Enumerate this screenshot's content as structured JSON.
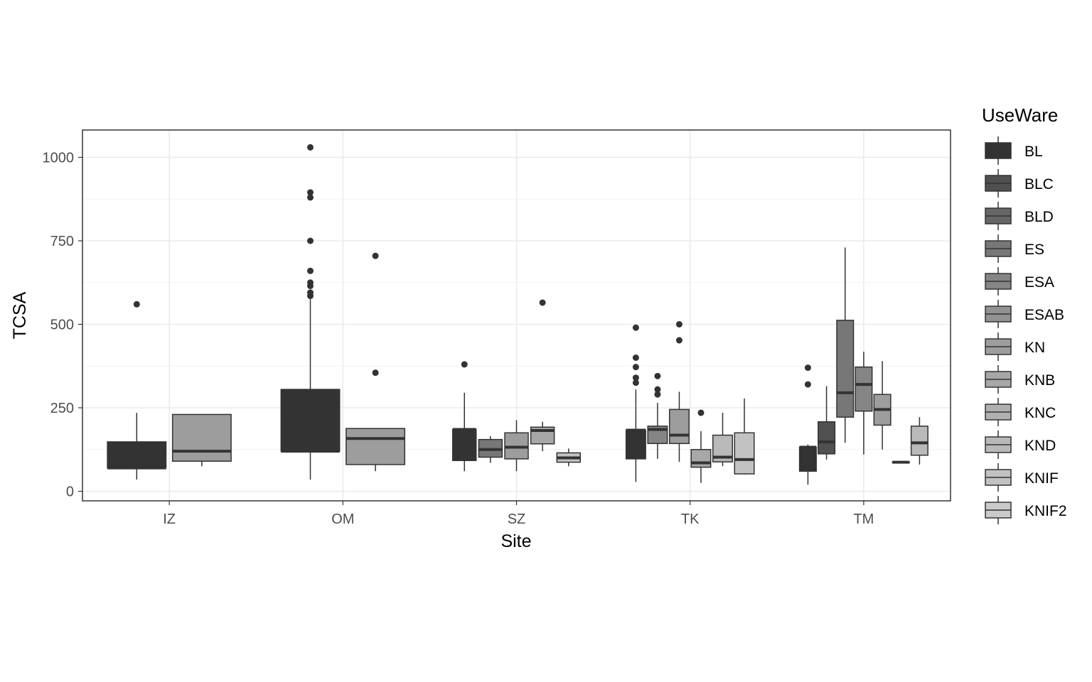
{
  "chart_data": {
    "type": "boxplot",
    "xlabel": "Site",
    "ylabel": "TCSA",
    "categories": [
      "IZ",
      "OM",
      "SZ",
      "TK",
      "TM"
    ],
    "yticks": [
      0,
      250,
      500,
      750,
      1000
    ],
    "ylim": [
      -30,
      1080
    ],
    "grid": true,
    "legend": {
      "title": "UseWare",
      "position": "right",
      "entries": [
        {
          "label": "BL",
          "color": "#333333"
        },
        {
          "label": "BLC",
          "color": "#505050"
        },
        {
          "label": "BLD",
          "color": "#666666"
        },
        {
          "label": "ES",
          "color": "#777777"
        },
        {
          "label": "ESA",
          "color": "#858585"
        },
        {
          "label": "ESAB",
          "color": "#929292"
        },
        {
          "label": "KN",
          "color": "#9d9d9d"
        },
        {
          "label": "KNB",
          "color": "#a7a7a7"
        },
        {
          "label": "KNC",
          "color": "#b0b0b0"
        },
        {
          "label": "KND",
          "color": "#b9b9b9"
        },
        {
          "label": "KNIF",
          "color": "#c2c2c2"
        },
        {
          "label": "KNIF2",
          "color": "#cacaca"
        }
      ]
    },
    "boxes": [
      {
        "site": "IZ",
        "group": "BL",
        "whisker_low": 35,
        "q1": 70,
        "median": 70,
        "q3": 148,
        "whisker_high": 235,
        "outliers": [
          560
        ]
      },
      {
        "site": "IZ",
        "group": "KN",
        "whisker_low": 75,
        "q1": 90,
        "median": 120,
        "q3": 230,
        "whisker_high": 230,
        "outliers": []
      },
      {
        "site": "OM",
        "group": "BL",
        "whisker_low": 35,
        "q1": 120,
        "median": 120,
        "q3": 305,
        "whisker_high": 575,
        "outliers": [
          585,
          595,
          615,
          625,
          660,
          750,
          880,
          895,
          1030
        ]
      },
      {
        "site": "OM",
        "group": "KN",
        "whisker_low": 60,
        "q1": 80,
        "median": 158,
        "q3": 188,
        "whisker_high": 188,
        "outliers": [
          355,
          705
        ]
      },
      {
        "site": "SZ",
        "group": "BL",
        "whisker_low": 60,
        "q1": 92,
        "median": 185,
        "q3": 185,
        "whisker_high": 295,
        "outliers": [
          380
        ]
      },
      {
        "site": "SZ",
        "group": "ES",
        "whisker_low": 85,
        "q1": 102,
        "median": 125,
        "q3": 155,
        "whisker_high": 165,
        "outliers": []
      },
      {
        "site": "SZ",
        "group": "KN",
        "whisker_low": 60,
        "q1": 97,
        "median": 132,
        "q3": 175,
        "whisker_high": 213,
        "outliers": []
      },
      {
        "site": "SZ",
        "group": "KNB",
        "whisker_low": 120,
        "q1": 142,
        "median": 182,
        "q3": 192,
        "whisker_high": 208,
        "outliers": [
          565
        ]
      },
      {
        "site": "SZ",
        "group": "KNIF",
        "whisker_low": 75,
        "q1": 87,
        "median": 100,
        "q3": 115,
        "whisker_high": 128,
        "outliers": []
      },
      {
        "site": "TK",
        "group": "BL",
        "whisker_low": 28,
        "q1": 97,
        "median": 183,
        "q3": 183,
        "whisker_high": 305,
        "outliers": [
          325,
          340,
          372,
          400,
          490
        ]
      },
      {
        "site": "TK",
        "group": "ESA",
        "whisker_low": 97,
        "q1": 143,
        "median": 185,
        "q3": 195,
        "whisker_high": 265,
        "outliers": [
          290,
          305,
          345
        ]
      },
      {
        "site": "TK",
        "group": "KN",
        "whisker_low": 88,
        "q1": 143,
        "median": 168,
        "q3": 245,
        "whisker_high": 298,
        "outliers": [
          452,
          500
        ]
      },
      {
        "site": "TK",
        "group": "KNB",
        "whisker_low": 25,
        "q1": 72,
        "median": 85,
        "q3": 125,
        "whisker_high": 180,
        "outliers": [
          235
        ]
      },
      {
        "site": "TK",
        "group": "KND",
        "whisker_low": 75,
        "q1": 88,
        "median": 102,
        "q3": 168,
        "whisker_high": 235,
        "outliers": []
      },
      {
        "site": "TK",
        "group": "KNIF",
        "whisker_low": 50,
        "q1": 52,
        "median": 95,
        "q3": 175,
        "whisker_high": 278,
        "outliers": []
      },
      {
        "site": "TM",
        "group": "BL",
        "whisker_low": 20,
        "q1": 60,
        "median": 132,
        "q3": 132,
        "whisker_high": 140,
        "outliers": [
          320,
          370
        ]
      },
      {
        "site": "TM",
        "group": "BLC",
        "whisker_low": 95,
        "q1": 112,
        "median": 148,
        "q3": 208,
        "whisker_high": 315,
        "outliers": []
      },
      {
        "site": "TM",
        "group": "ES",
        "whisker_low": 145,
        "q1": 222,
        "median": 295,
        "q3": 512,
        "whisker_high": 730,
        "outliers": []
      },
      {
        "site": "TM",
        "group": "ESA",
        "whisker_low": 110,
        "q1": 240,
        "median": 320,
        "q3": 372,
        "whisker_high": 418,
        "outliers": []
      },
      {
        "site": "TM",
        "group": "KN",
        "whisker_low": 125,
        "q1": 198,
        "median": 245,
        "q3": 290,
        "whisker_high": 390,
        "outliers": []
      },
      {
        "site": "TM",
        "group": "KNB",
        "whisker_low": 85,
        "q1": 85,
        "median": 87,
        "q3": 88,
        "whisker_high": 88,
        "outliers": []
      },
      {
        "site": "TM",
        "group": "KND",
        "whisker_low": 80,
        "q1": 108,
        "median": 145,
        "q3": 195,
        "whisker_high": 222,
        "outliers": []
      }
    ]
  }
}
